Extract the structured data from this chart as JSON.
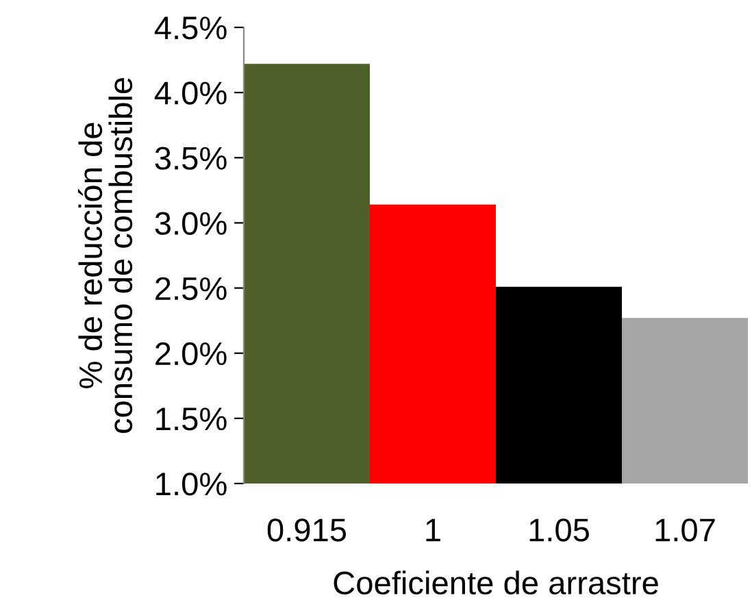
{
  "chart_data": {
    "type": "bar",
    "xlabel": "Coeficiente de arrastre",
    "ylabel": "% de reducción de\nconsumo de combustible",
    "categories": [
      "0.915",
      "1",
      "1.05",
      "1.07"
    ],
    "values": [
      4.22,
      3.14,
      2.51,
      2.27
    ],
    "colors": [
      "#4f5f2a",
      "#ff0000",
      "#000000",
      "#a6a6a6"
    ],
    "ylim": [
      1.0,
      4.5
    ],
    "yticks": [
      {
        "value": 1.0,
        "label": "1.0%"
      },
      {
        "value": 1.5,
        "label": "1.5%"
      },
      {
        "value": 2.0,
        "label": "2.0%"
      },
      {
        "value": 2.5,
        "label": "2.5%"
      },
      {
        "value": 3.0,
        "label": "3.0%"
      },
      {
        "value": 3.5,
        "label": "3.5%"
      },
      {
        "value": 4.0,
        "label": "4.0%"
      },
      {
        "value": 4.5,
        "label": "4.5%"
      }
    ],
    "grid": false,
    "legend": false
  }
}
